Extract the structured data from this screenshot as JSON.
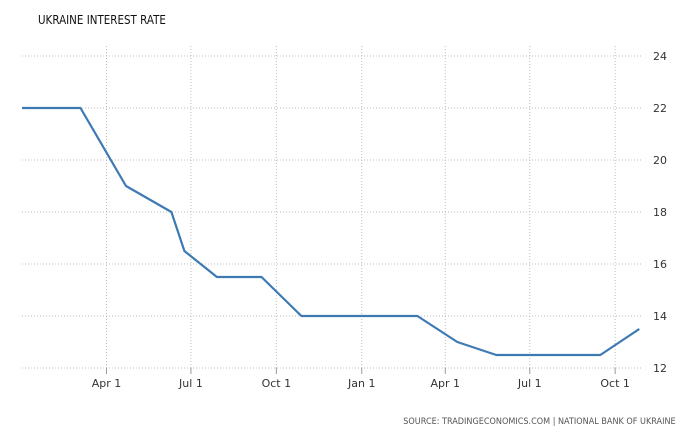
{
  "chart_data": {
    "type": "line",
    "title": "UKRAINE INTEREST RATE",
    "source": "SOURCE: TRADINGECONOMICS.COM | NATIONAL BANK OF UKRAINE",
    "xlabel": "",
    "ylabel": "",
    "ylim": [
      12,
      24
    ],
    "yticks": [
      12,
      14,
      16,
      18,
      20,
      22,
      24
    ],
    "y_axis_position": "right",
    "grid": "dotted",
    "xlim": [
      "2016-01-01",
      "2017-10-31"
    ],
    "xtick_labels": [
      {
        "label": "Apr 1",
        "date": "2016-04-01"
      },
      {
        "label": "Jul 1",
        "date": "2016-07-01"
      },
      {
        "label": "Oct 1",
        "date": "2016-10-01"
      },
      {
        "label": "Jan 1",
        "date": "2017-01-01"
      },
      {
        "label": "Apr 1",
        "date": "2017-04-01"
      },
      {
        "label": "Jul 1",
        "date": "2017-07-01"
      },
      {
        "label": "Oct 1",
        "date": "2017-10-01"
      }
    ],
    "line_color": "#3d7ab3",
    "series": [
      {
        "points": [
          {
            "x": "2016-01-01",
            "y": 22
          },
          {
            "x": "2016-03-04",
            "y": 22
          },
          {
            "x": "2016-04-22",
            "y": 19
          },
          {
            "x": "2016-06-10",
            "y": 18
          },
          {
            "x": "2016-06-24",
            "y": 16.5
          },
          {
            "x": "2016-07-29",
            "y": 15.5
          },
          {
            "x": "2016-09-15",
            "y": 15.5
          },
          {
            "x": "2016-10-28",
            "y": 14
          },
          {
            "x": "2016-12-15",
            "y": 14
          },
          {
            "x": "2017-03-02",
            "y": 14
          },
          {
            "x": "2017-04-14",
            "y": 13
          },
          {
            "x": "2017-05-26",
            "y": 12.5
          },
          {
            "x": "2017-07-14",
            "y": 12.5
          },
          {
            "x": "2017-09-15",
            "y": 12.5
          },
          {
            "x": "2017-10-27",
            "y": 13.5
          }
        ]
      }
    ]
  }
}
